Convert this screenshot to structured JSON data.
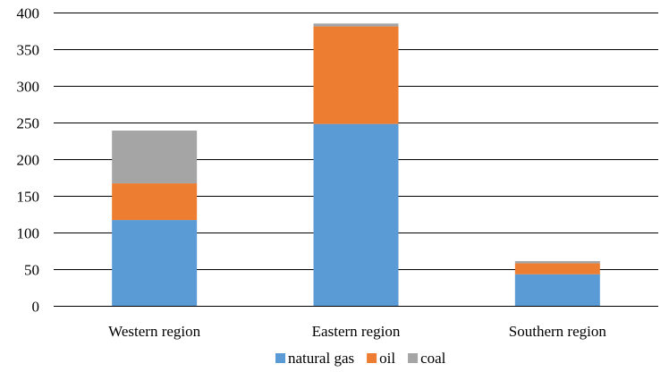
{
  "chart_data": {
    "type": "bar",
    "stacked": true,
    "categories": [
      "Western region",
      "Eastern region",
      "Southern region"
    ],
    "series": [
      {
        "name": "natural gas",
        "color": "#5B9BD5",
        "values": [
          117,
          248,
          43
        ]
      },
      {
        "name": "oil",
        "color": "#ED7D31",
        "values": [
          50,
          133,
          15
        ]
      },
      {
        "name": "coal",
        "color": "#A5A5A5",
        "values": [
          72,
          4,
          3
        ]
      }
    ],
    "ylim": [
      0,
      400
    ],
    "yticks": [
      "0",
      "50",
      "100",
      "150",
      "200",
      "250",
      "300",
      "350",
      "400"
    ],
    "grid": true,
    "legend": "bottom"
  }
}
